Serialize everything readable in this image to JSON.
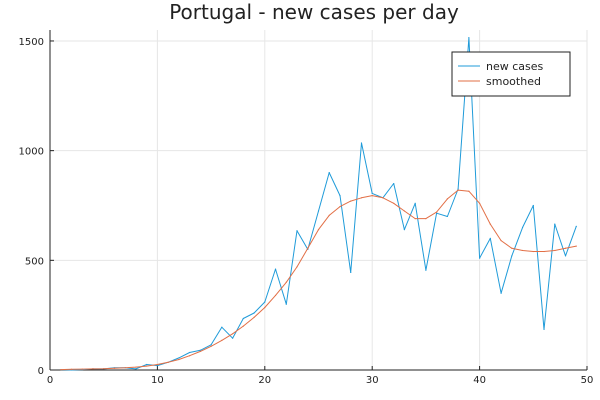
{
  "chart_data": {
    "type": "line",
    "title": "Portugal - new cases per day",
    "xlabel": "",
    "ylabel": "",
    "xlim": [
      0,
      50
    ],
    "ylim": [
      0,
      1550
    ],
    "x_ticks": [
      0,
      10,
      20,
      30,
      40,
      50
    ],
    "y_ticks": [
      0,
      500,
      1000,
      1500
    ],
    "x_tick_labels": [
      "0",
      "10",
      "20",
      "30",
      "40",
      "50"
    ],
    "y_tick_labels": [
      "0",
      "500",
      "1000",
      "1500"
    ],
    "grid": true,
    "legend_position": "top-right",
    "series": [
      {
        "name": "new cases",
        "color": "#1f9bd9",
        "x": [
          1,
          2,
          3,
          4,
          5,
          6,
          7,
          8,
          9,
          10,
          11,
          12,
          13,
          14,
          15,
          16,
          17,
          18,
          19,
          20,
          21,
          22,
          23,
          24,
          25,
          26,
          27,
          28,
          29,
          30,
          31,
          32,
          33,
          34,
          35,
          36,
          37,
          38,
          39,
          40,
          41,
          42,
          43,
          44,
          45,
          46,
          47,
          48,
          49
        ],
        "y": [
          2,
          0,
          2,
          5,
          5,
          10,
          10,
          5,
          25,
          20,
          35,
          55,
          80,
          90,
          115,
          195,
          145,
          235,
          260,
          310,
          460,
          300,
          635,
          550,
          725,
          900,
          795,
          445,
          1035,
          805,
          785,
          850,
          640,
          760,
          455,
          715,
          700,
          825,
          1515,
          510,
          600,
          350,
          520,
          650,
          750,
          185,
          665,
          520,
          655
        ]
      },
      {
        "name": "smoothed",
        "color": "#e26f46",
        "x": [
          1,
          2,
          3,
          4,
          5,
          6,
          7,
          8,
          9,
          10,
          11,
          12,
          13,
          14,
          15,
          16,
          17,
          18,
          19,
          20,
          21,
          22,
          23,
          24,
          25,
          26,
          27,
          28,
          29,
          30,
          31,
          32,
          33,
          34,
          35,
          36,
          37,
          38,
          39,
          40,
          41,
          42,
          43,
          44,
          45,
          46,
          47,
          48,
          49
        ],
        "y": [
          2,
          3,
          4,
          5,
          6,
          8,
          10,
          13,
          18,
          25,
          35,
          48,
          65,
          85,
          108,
          135,
          165,
          200,
          240,
          285,
          340,
          400,
          470,
          555,
          640,
          705,
          745,
          770,
          785,
          795,
          785,
          760,
          725,
          690,
          690,
          720,
          780,
          820,
          815,
          760,
          665,
          590,
          555,
          545,
          540,
          540,
          545,
          555,
          565
        ]
      }
    ]
  }
}
